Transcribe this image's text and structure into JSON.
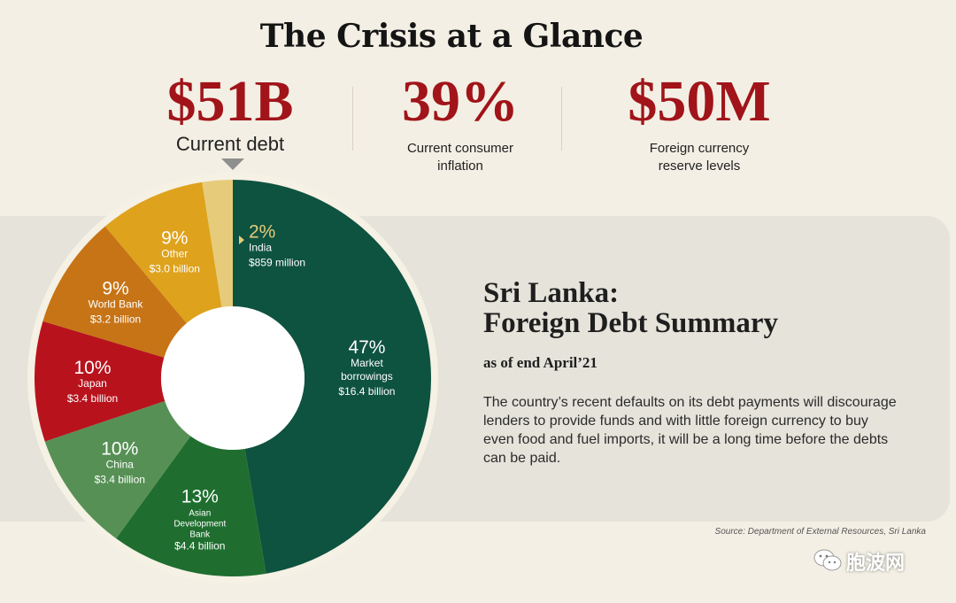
{
  "header": {
    "title": "The Crisis at a Glance"
  },
  "stats": [
    {
      "value": "$51B",
      "label": "Current debt"
    },
    {
      "value": "39%",
      "label": "Current consumer inflation"
    },
    {
      "value": "$50M",
      "label": "Foreign currency reserve levels"
    }
  ],
  "summary": {
    "title_line1": "Sri Lanka:",
    "title_line2": "Foreign Debt Summary",
    "date": "as of end April’21",
    "body": "The country’s recent defaults on its debt payments will discourage lenders to provide funds and with little foreign currency to buy even food and fuel imports, it will be a long time before the debts can be paid."
  },
  "source": "Source: Department of External Resources, Sri Lanka",
  "watermark": {
    "text": "胞波网",
    "icon": "wechat-icon"
  },
  "colors": {
    "accent": "#a11419",
    "panel": "#e5e3da",
    "background": "#f3efe4"
  },
  "chart_data": {
    "type": "pie",
    "title": "",
    "slices": [
      {
        "label": "Market borrowings",
        "percent_label": "47%",
        "value_label": "$16.4 billion",
        "value": 16.4,
        "percent": 47,
        "color": "#0e5240"
      },
      {
        "label": "Asian Development Bank",
        "percent_label": "13%",
        "value_label": "$4.4 billion",
        "value": 4.4,
        "percent": 13,
        "color": "#1f6e2f"
      },
      {
        "label": "China",
        "percent_label": "10%",
        "value_label": "$3.4 billion",
        "value": 3.4,
        "percent": 10,
        "color": "#569055"
      },
      {
        "label": "Japan",
        "percent_label": "10%",
        "value_label": "$3.4 billion",
        "value": 3.4,
        "percent": 10,
        "color": "#b8131d"
      },
      {
        "label": "World Bank",
        "percent_label": "9%",
        "value_label": "$3.2 billion",
        "value": 3.2,
        "percent": 9,
        "color": "#c77416"
      },
      {
        "label": "Other",
        "percent_label": "9%",
        "value_label": "$3.0 billion",
        "value": 3.0,
        "percent": 9,
        "color": "#dea21c"
      },
      {
        "label": "India",
        "percent_label": "2%",
        "value_label": "$859 million",
        "value": 0.859,
        "percent": 2,
        "color": "#e6cc7a"
      }
    ]
  }
}
